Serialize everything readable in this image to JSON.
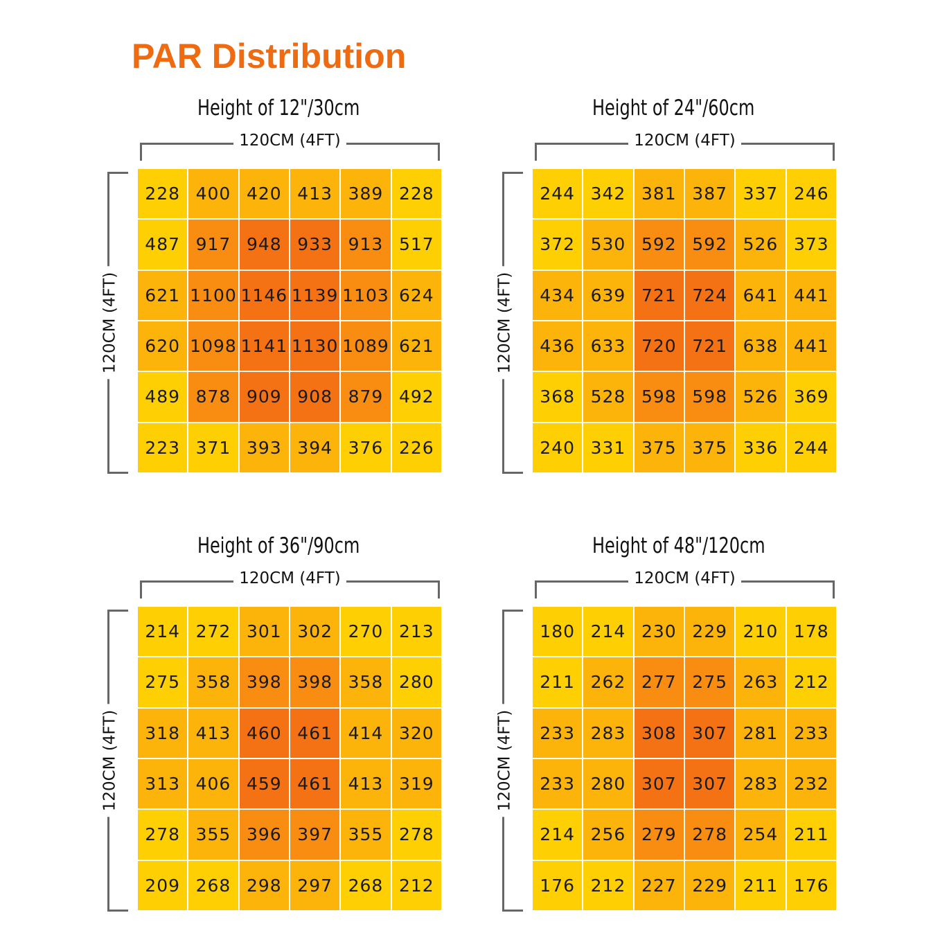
{
  "title": "PAR Distribution",
  "colors": {
    "title": "#ef6b12",
    "low": "#fecf02",
    "mid": "#fcb30a",
    "high": "#f88d11",
    "peak": "#f47213",
    "bracket": "#666666"
  },
  "chart_data": [
    {
      "type": "heatmap",
      "title": "Height of 12\"/30cm",
      "xlabel": "120CM (4FT)",
      "ylabel": "120CM (4FT)",
      "values": [
        [
          228,
          400,
          420,
          413,
          389,
          228
        ],
        [
          487,
          917,
          948,
          933,
          913,
          517
        ],
        [
          621,
          1100,
          1146,
          1139,
          1103,
          624
        ],
        [
          620,
          1098,
          1141,
          1130,
          1089,
          621
        ],
        [
          489,
          878,
          909,
          908,
          879,
          492
        ],
        [
          223,
          371,
          393,
          394,
          376,
          226
        ]
      ],
      "levels": [
        [
          0,
          1,
          1,
          1,
          1,
          0
        ],
        [
          0,
          2,
          3,
          3,
          2,
          0
        ],
        [
          1,
          2,
          3,
          3,
          2,
          1
        ],
        [
          1,
          2,
          3,
          3,
          2,
          1
        ],
        [
          0,
          2,
          3,
          3,
          2,
          0
        ],
        [
          0,
          0,
          1,
          1,
          0,
          0
        ]
      ]
    },
    {
      "type": "heatmap",
      "title": "Height of 24\"/60cm",
      "xlabel": "120CM (4FT)",
      "ylabel": "120CM (4FT)",
      "values": [
        [
          244,
          342,
          381,
          387,
          337,
          246
        ],
        [
          372,
          530,
          592,
          592,
          526,
          373
        ],
        [
          434,
          639,
          721,
          724,
          641,
          441
        ],
        [
          436,
          633,
          720,
          721,
          638,
          441
        ],
        [
          368,
          528,
          598,
          598,
          526,
          369
        ],
        [
          240,
          331,
          375,
          375,
          336,
          244
        ]
      ],
      "levels": [
        [
          0,
          0,
          1,
          1,
          0,
          0
        ],
        [
          0,
          1,
          2,
          2,
          1,
          0
        ],
        [
          1,
          1,
          3,
          3,
          1,
          1
        ],
        [
          1,
          1,
          3,
          3,
          1,
          1
        ],
        [
          0,
          1,
          2,
          2,
          1,
          0
        ],
        [
          0,
          0,
          1,
          1,
          0,
          0
        ]
      ]
    },
    {
      "type": "heatmap",
      "title": "Height of 36\"/90cm",
      "xlabel": "120CM (4FT)",
      "ylabel": "120CM (4FT)",
      "values": [
        [
          214,
          272,
          301,
          302,
          270,
          213
        ],
        [
          275,
          358,
          398,
          398,
          358,
          280
        ],
        [
          318,
          413,
          460,
          461,
          414,
          320
        ],
        [
          313,
          406,
          459,
          461,
          413,
          319
        ],
        [
          278,
          355,
          396,
          397,
          355,
          278
        ],
        [
          209,
          268,
          298,
          297,
          268,
          212
        ]
      ],
      "levels": [
        [
          0,
          0,
          1,
          1,
          0,
          0
        ],
        [
          0,
          1,
          2,
          2,
          1,
          0
        ],
        [
          1,
          1,
          3,
          3,
          1,
          1
        ],
        [
          1,
          1,
          3,
          3,
          1,
          1
        ],
        [
          0,
          1,
          2,
          2,
          1,
          0
        ],
        [
          0,
          0,
          1,
          1,
          0,
          0
        ]
      ]
    },
    {
      "type": "heatmap",
      "title": "Height of 48\"/120cm",
      "xlabel": "120CM (4FT)",
      "ylabel": "120CM (4FT)",
      "values": [
        [
          180,
          214,
          230,
          229,
          210,
          178
        ],
        [
          211,
          262,
          277,
          275,
          263,
          212
        ],
        [
          233,
          283,
          308,
          307,
          281,
          233
        ],
        [
          233,
          280,
          307,
          307,
          283,
          232
        ],
        [
          214,
          256,
          279,
          278,
          254,
          211
        ],
        [
          176,
          212,
          227,
          229,
          211,
          176
        ]
      ],
      "levels": [
        [
          0,
          0,
          1,
          1,
          0,
          0
        ],
        [
          0,
          1,
          2,
          2,
          1,
          0
        ],
        [
          1,
          1,
          3,
          3,
          1,
          1
        ],
        [
          1,
          1,
          3,
          3,
          1,
          1
        ],
        [
          0,
          1,
          2,
          2,
          1,
          0
        ],
        [
          0,
          0,
          1,
          1,
          0,
          0
        ]
      ]
    }
  ]
}
